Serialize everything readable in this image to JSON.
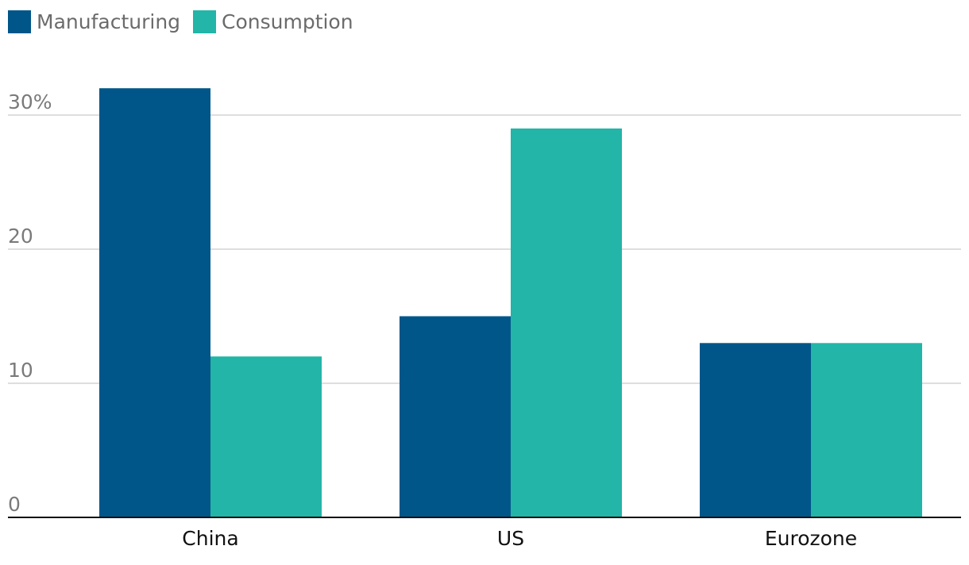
{
  "chart_data": {
    "type": "bar",
    "categories": [
      "China",
      "US",
      "Eurozone"
    ],
    "series": [
      {
        "name": "Manufacturing",
        "values": [
          32,
          15,
          13
        ],
        "color": "#005689"
      },
      {
        "name": "Consumption",
        "values": [
          12,
          29,
          13
        ],
        "color": "#22b5a8"
      }
    ],
    "title": "",
    "xlabel": "",
    "ylabel": "",
    "ylim": [
      0,
      32
    ],
    "yticks": [
      {
        "value": 0,
        "label": "0"
      },
      {
        "value": 10,
        "label": "10"
      },
      {
        "value": 20,
        "label": "20"
      },
      {
        "value": 30,
        "label": "30%"
      }
    ],
    "grid": true,
    "legend_position": "top-left"
  }
}
